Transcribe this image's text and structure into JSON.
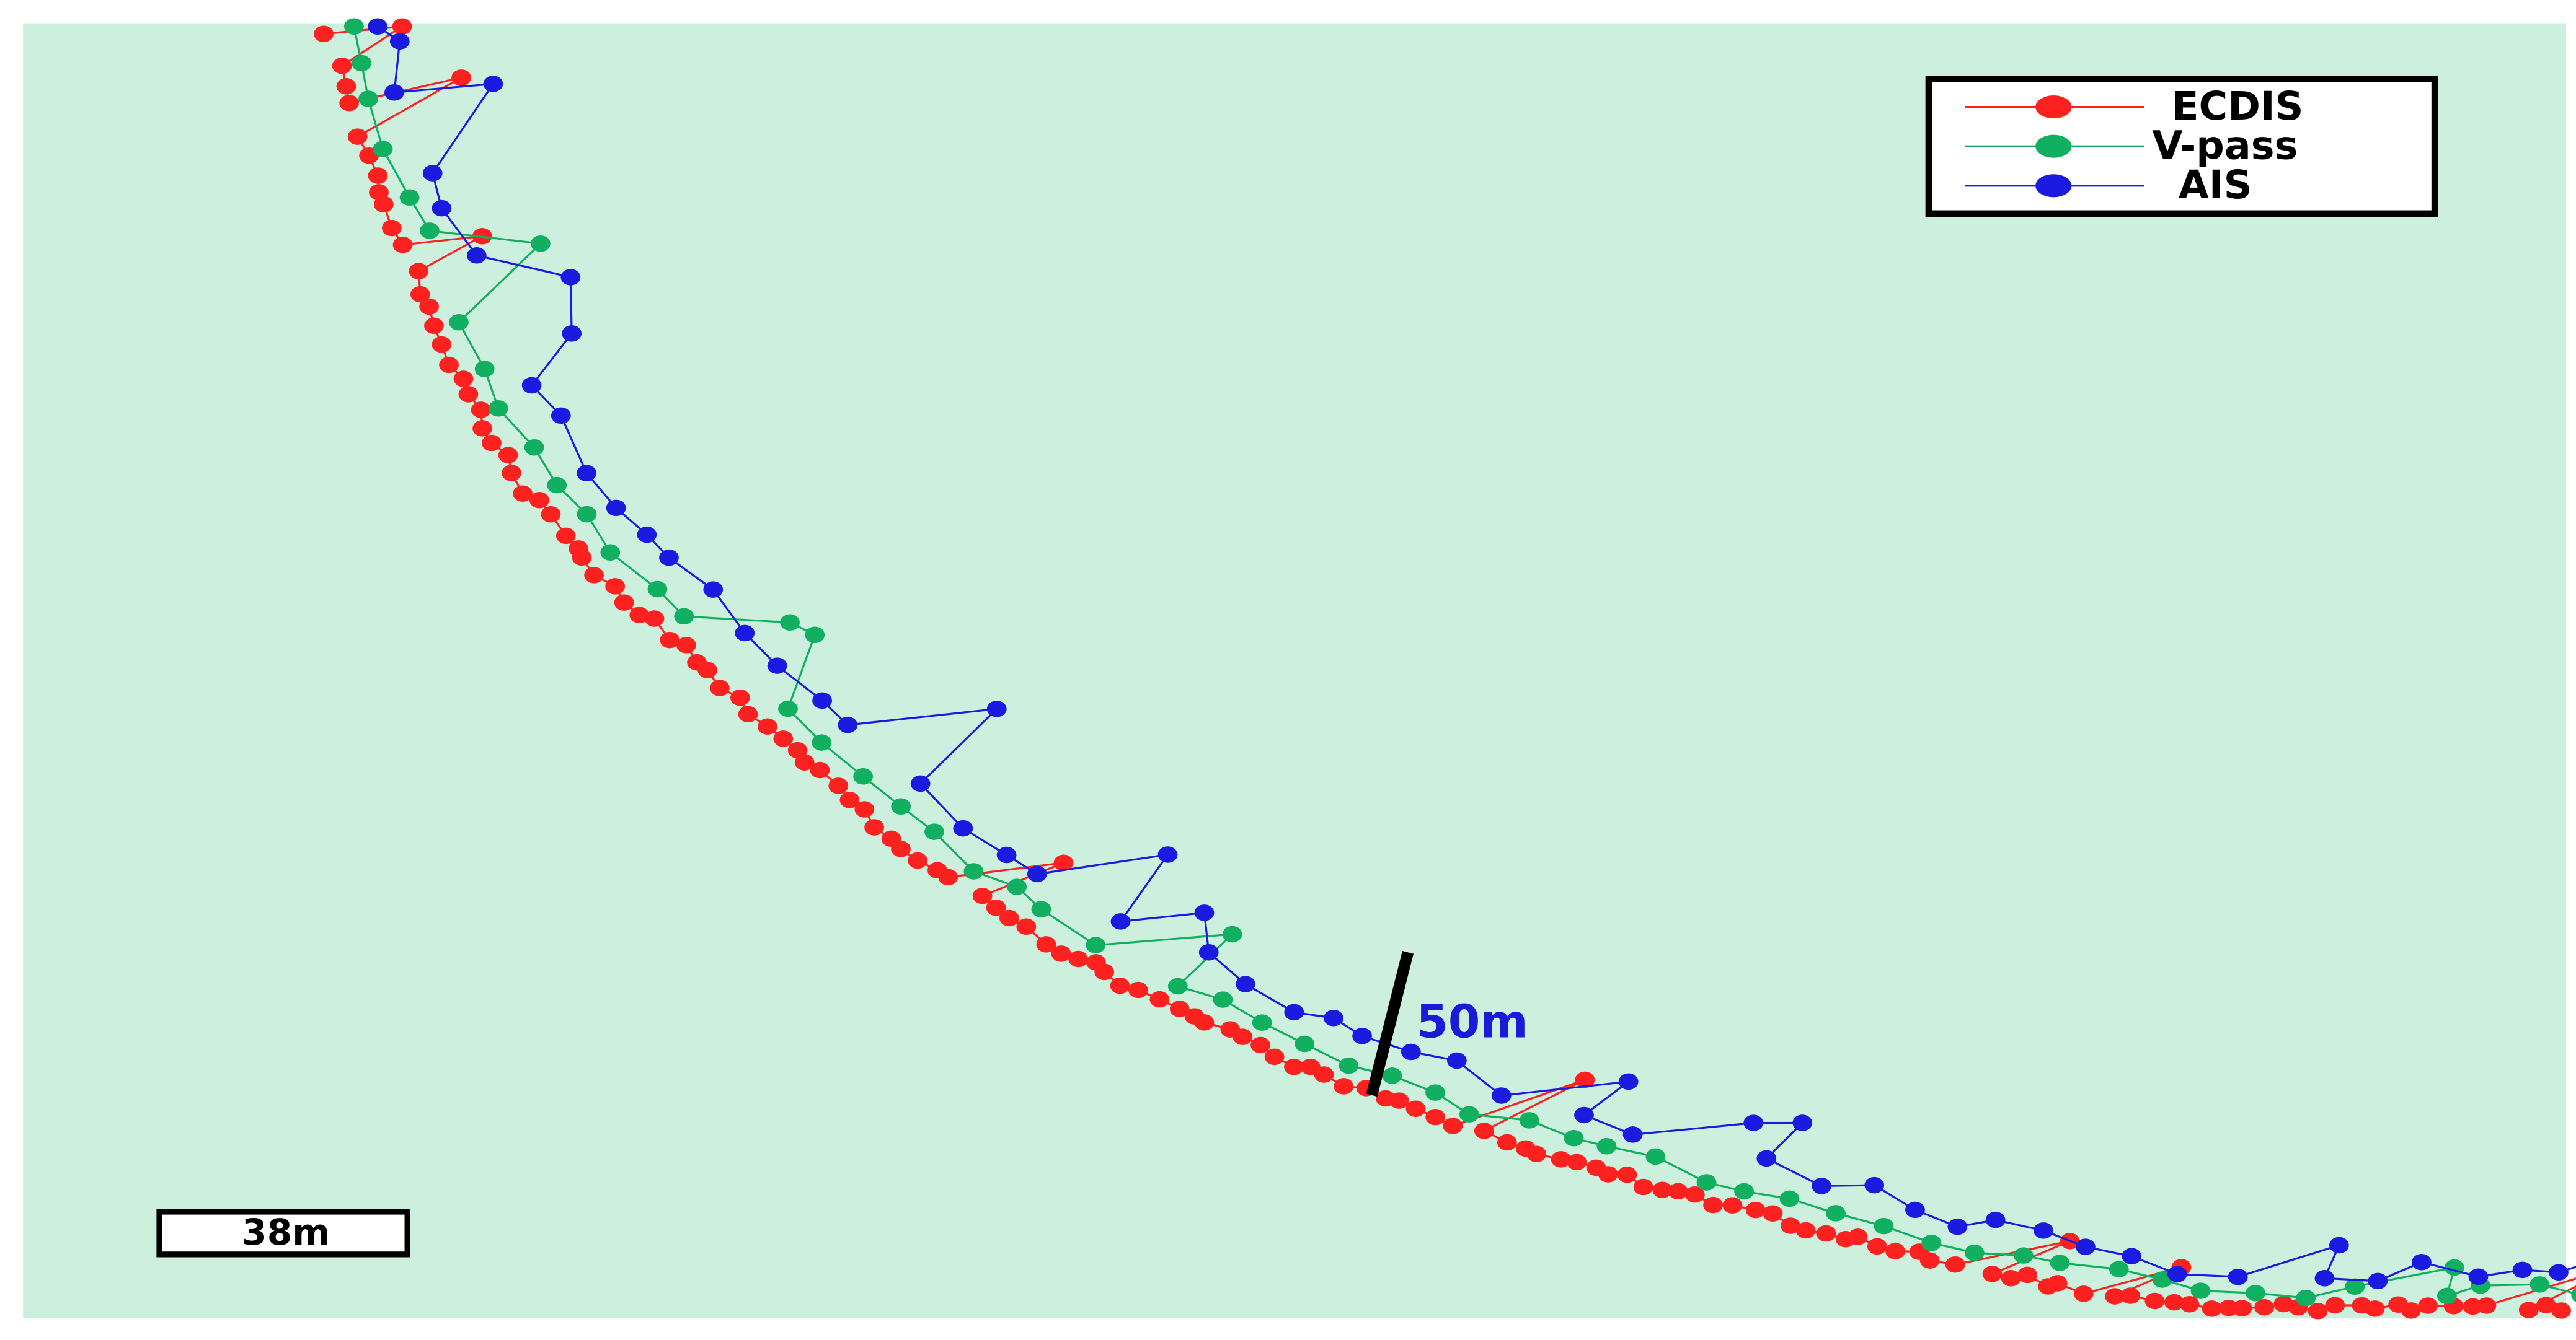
{
  "legend": {
    "items": [
      "ECDIS",
      "V-pass",
      "AIS"
    ]
  },
  "annotation": "50m",
  "scale_bar": "38m"
}
